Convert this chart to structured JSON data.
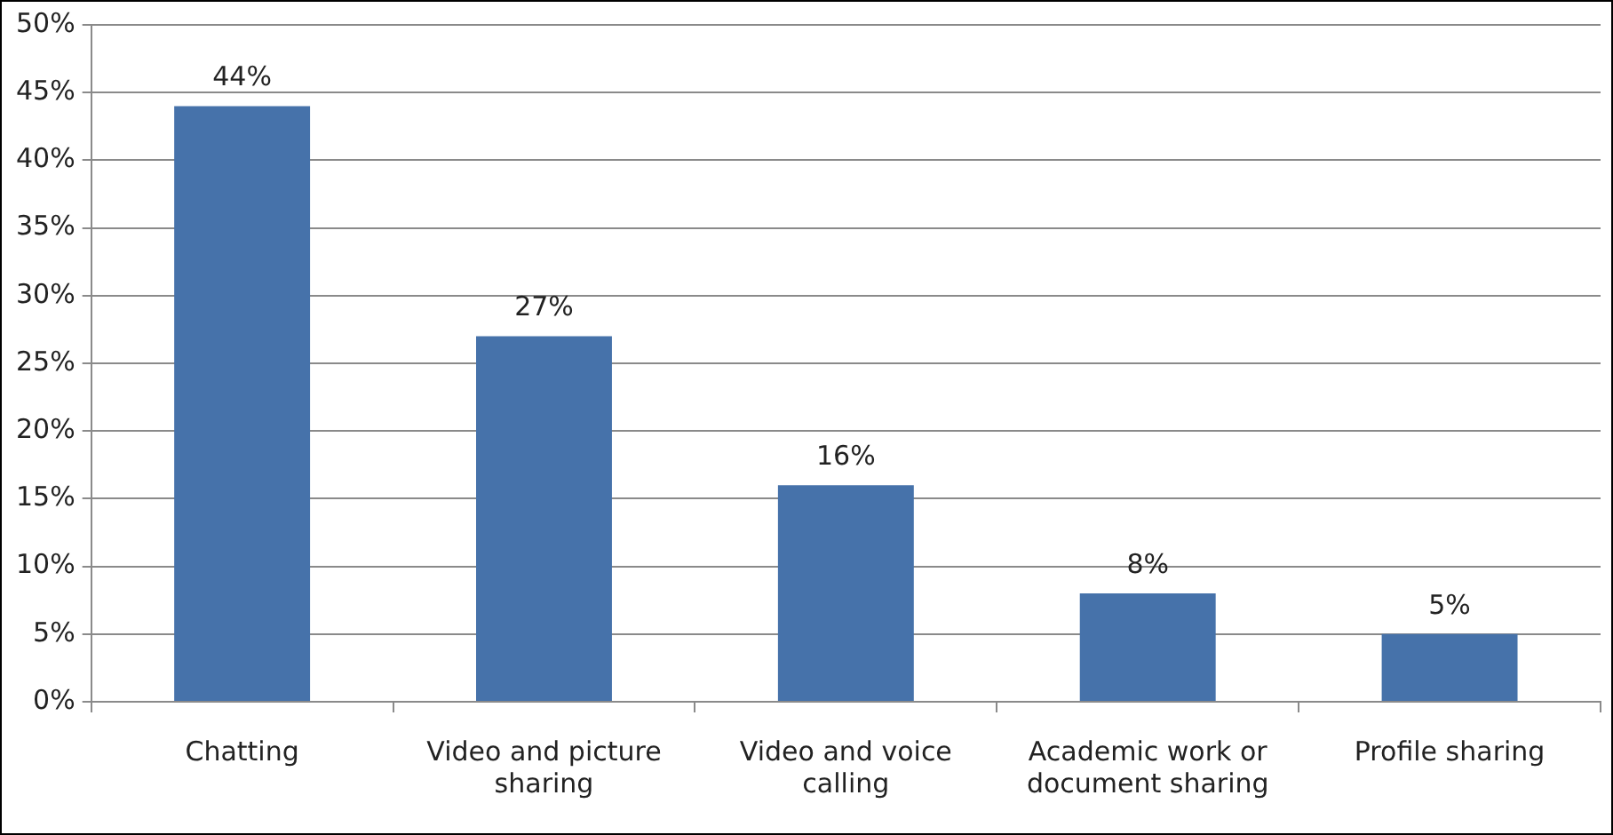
{
  "chart_data": {
    "type": "bar",
    "categories": [
      "Chatting",
      "Video and picture sharing",
      "Video and voice calling",
      "Academic work or document sharing",
      "Profile sharing"
    ],
    "values": [
      44,
      27,
      16,
      8,
      5
    ],
    "value_labels": [
      "44%",
      "27%",
      "16%",
      "8%",
      "5%"
    ],
    "color": "#4672aa",
    "ylim": [
      0,
      50
    ],
    "yticks": [
      {
        "value": 0,
        "label": "0%"
      },
      {
        "value": 5,
        "label": "5%"
      },
      {
        "value": 10,
        "label": "10%"
      },
      {
        "value": 15,
        "label": "15%"
      },
      {
        "value": 20,
        "label": "20%"
      },
      {
        "value": 25,
        "label": "25%"
      },
      {
        "value": 30,
        "label": "30%"
      },
      {
        "value": 35,
        "label": "35%"
      },
      {
        "value": 40,
        "label": "40%"
      },
      {
        "value": 45,
        "label": "45%"
      },
      {
        "value": 50,
        "label": "50%"
      }
    ],
    "grid": "y",
    "legend": false
  }
}
